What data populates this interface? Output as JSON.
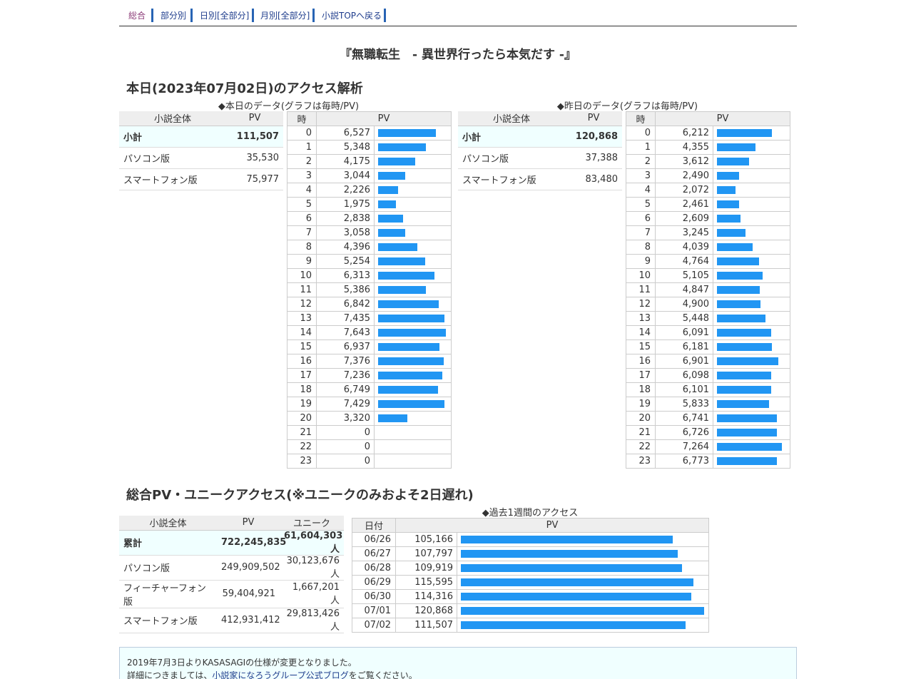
{
  "tabs": [
    "総合",
    "部分別",
    "日別[全部分]",
    "月別[全部分]",
    "小説TOPへ戻る"
  ],
  "title": "『無職転生　- 異世界行ったら本気だす -』",
  "daily_heading": "本日(2023年07月02日)のアクセス解析",
  "today": {
    "caption": "◆本日のデータ(グラフは毎時/PV)",
    "summary": {
      "headers": [
        "小説全体",
        "PV"
      ],
      "rows": [
        {
          "label": "小計",
          "pv": "111,507"
        },
        {
          "label": "パソコン版",
          "pv": "35,530"
        },
        {
          "label": "スマートフォン版",
          "pv": "75,977"
        }
      ]
    },
    "hourly": {
      "headers": [
        "時",
        "PV"
      ],
      "hours": [
        "0",
        "1",
        "2",
        "3",
        "4",
        "5",
        "6",
        "7",
        "8",
        "9",
        "10",
        "11",
        "12",
        "13",
        "14",
        "15",
        "16",
        "17",
        "18",
        "19",
        "20",
        "21",
        "22",
        "23"
      ],
      "pv": [
        "6,527",
        "5,348",
        "4,175",
        "3,044",
        "2,226",
        "1,975",
        "2,838",
        "3,058",
        "4,396",
        "5,254",
        "6,313",
        "5,386",
        "6,842",
        "7,435",
        "7,643",
        "6,937",
        "7,376",
        "7,236",
        "6,749",
        "7,429",
        "3,320",
        "0",
        "0",
        "0"
      ],
      "values": [
        6527,
        5348,
        4175,
        3044,
        2226,
        1975,
        2838,
        3058,
        4396,
        5254,
        6313,
        5386,
        6842,
        7435,
        7643,
        6937,
        7376,
        7236,
        6749,
        7429,
        3320,
        0,
        0,
        0
      ]
    }
  },
  "yesterday": {
    "caption": "◆昨日のデータ(グラフは毎時/PV)",
    "summary": {
      "headers": [
        "小説全体",
        "PV"
      ],
      "rows": [
        {
          "label": "小計",
          "pv": "120,868"
        },
        {
          "label": "パソコン版",
          "pv": "37,388"
        },
        {
          "label": "スマートフォン版",
          "pv": "83,480"
        }
      ]
    },
    "hourly": {
      "headers": [
        "時",
        "PV"
      ],
      "hours": [
        "0",
        "1",
        "2",
        "3",
        "4",
        "5",
        "6",
        "7",
        "8",
        "9",
        "10",
        "11",
        "12",
        "13",
        "14",
        "15",
        "16",
        "17",
        "18",
        "19",
        "20",
        "21",
        "22",
        "23"
      ],
      "pv": [
        "6,212",
        "4,355",
        "3,612",
        "2,490",
        "2,072",
        "2,461",
        "2,609",
        "3,245",
        "4,039",
        "4,764",
        "5,105",
        "4,847",
        "4,900",
        "5,448",
        "6,091",
        "6,181",
        "6,901",
        "6,098",
        "6,101",
        "5,833",
        "6,741",
        "6,726",
        "7,264",
        "6,773"
      ],
      "values": [
        6212,
        4355,
        3612,
        2490,
        2072,
        2461,
        2609,
        3245,
        4039,
        4764,
        5105,
        4847,
        4900,
        5448,
        6091,
        6181,
        6901,
        6098,
        6101,
        5833,
        6741,
        6726,
        7264,
        6773
      ]
    }
  },
  "total_heading": "総合PV・ユニークアクセス(※ユニークのみおよそ2日遅れ)",
  "total": {
    "headers": [
      "小説全体",
      "PV",
      "ユニーク"
    ],
    "rows": [
      {
        "label": "累計",
        "pv": "722,245,835",
        "unique": "61,604,303人"
      },
      {
        "label": "パソコン版",
        "pv": "249,909,502",
        "unique": "30,123,676人"
      },
      {
        "label": "フィーチャーフォン版",
        "pv": "59,404,921",
        "unique": "1,667,201人"
      },
      {
        "label": "スマートフォン版",
        "pv": "412,931,412",
        "unique": "29,813,426人"
      }
    ]
  },
  "weekly": {
    "caption": "◆過去1週間のアクセス",
    "headers": [
      "日付",
      "PV"
    ],
    "dates": [
      "06/26",
      "06/27",
      "06/28",
      "06/29",
      "06/30",
      "07/01",
      "07/02"
    ],
    "pv": [
      "105,166",
      "107,797",
      "109,919",
      "115,595",
      "114,316",
      "120,868",
      "111,507"
    ],
    "values": [
      105166,
      107797,
      109919,
      115595,
      114316,
      120868,
      111507
    ]
  },
  "notice": {
    "line1": "2019年7月3日よりKASASAGIの仕様が変更となりました。",
    "line2_pre": "詳細につきましては、",
    "line2_link": "小説家になろうグループ公式ブログ",
    "line2_post": "をご覧ください。"
  },
  "colors": {
    "bar": "#2196f3",
    "tab_active": "#8c3c78",
    "tab": "#1e3c8c"
  }
}
